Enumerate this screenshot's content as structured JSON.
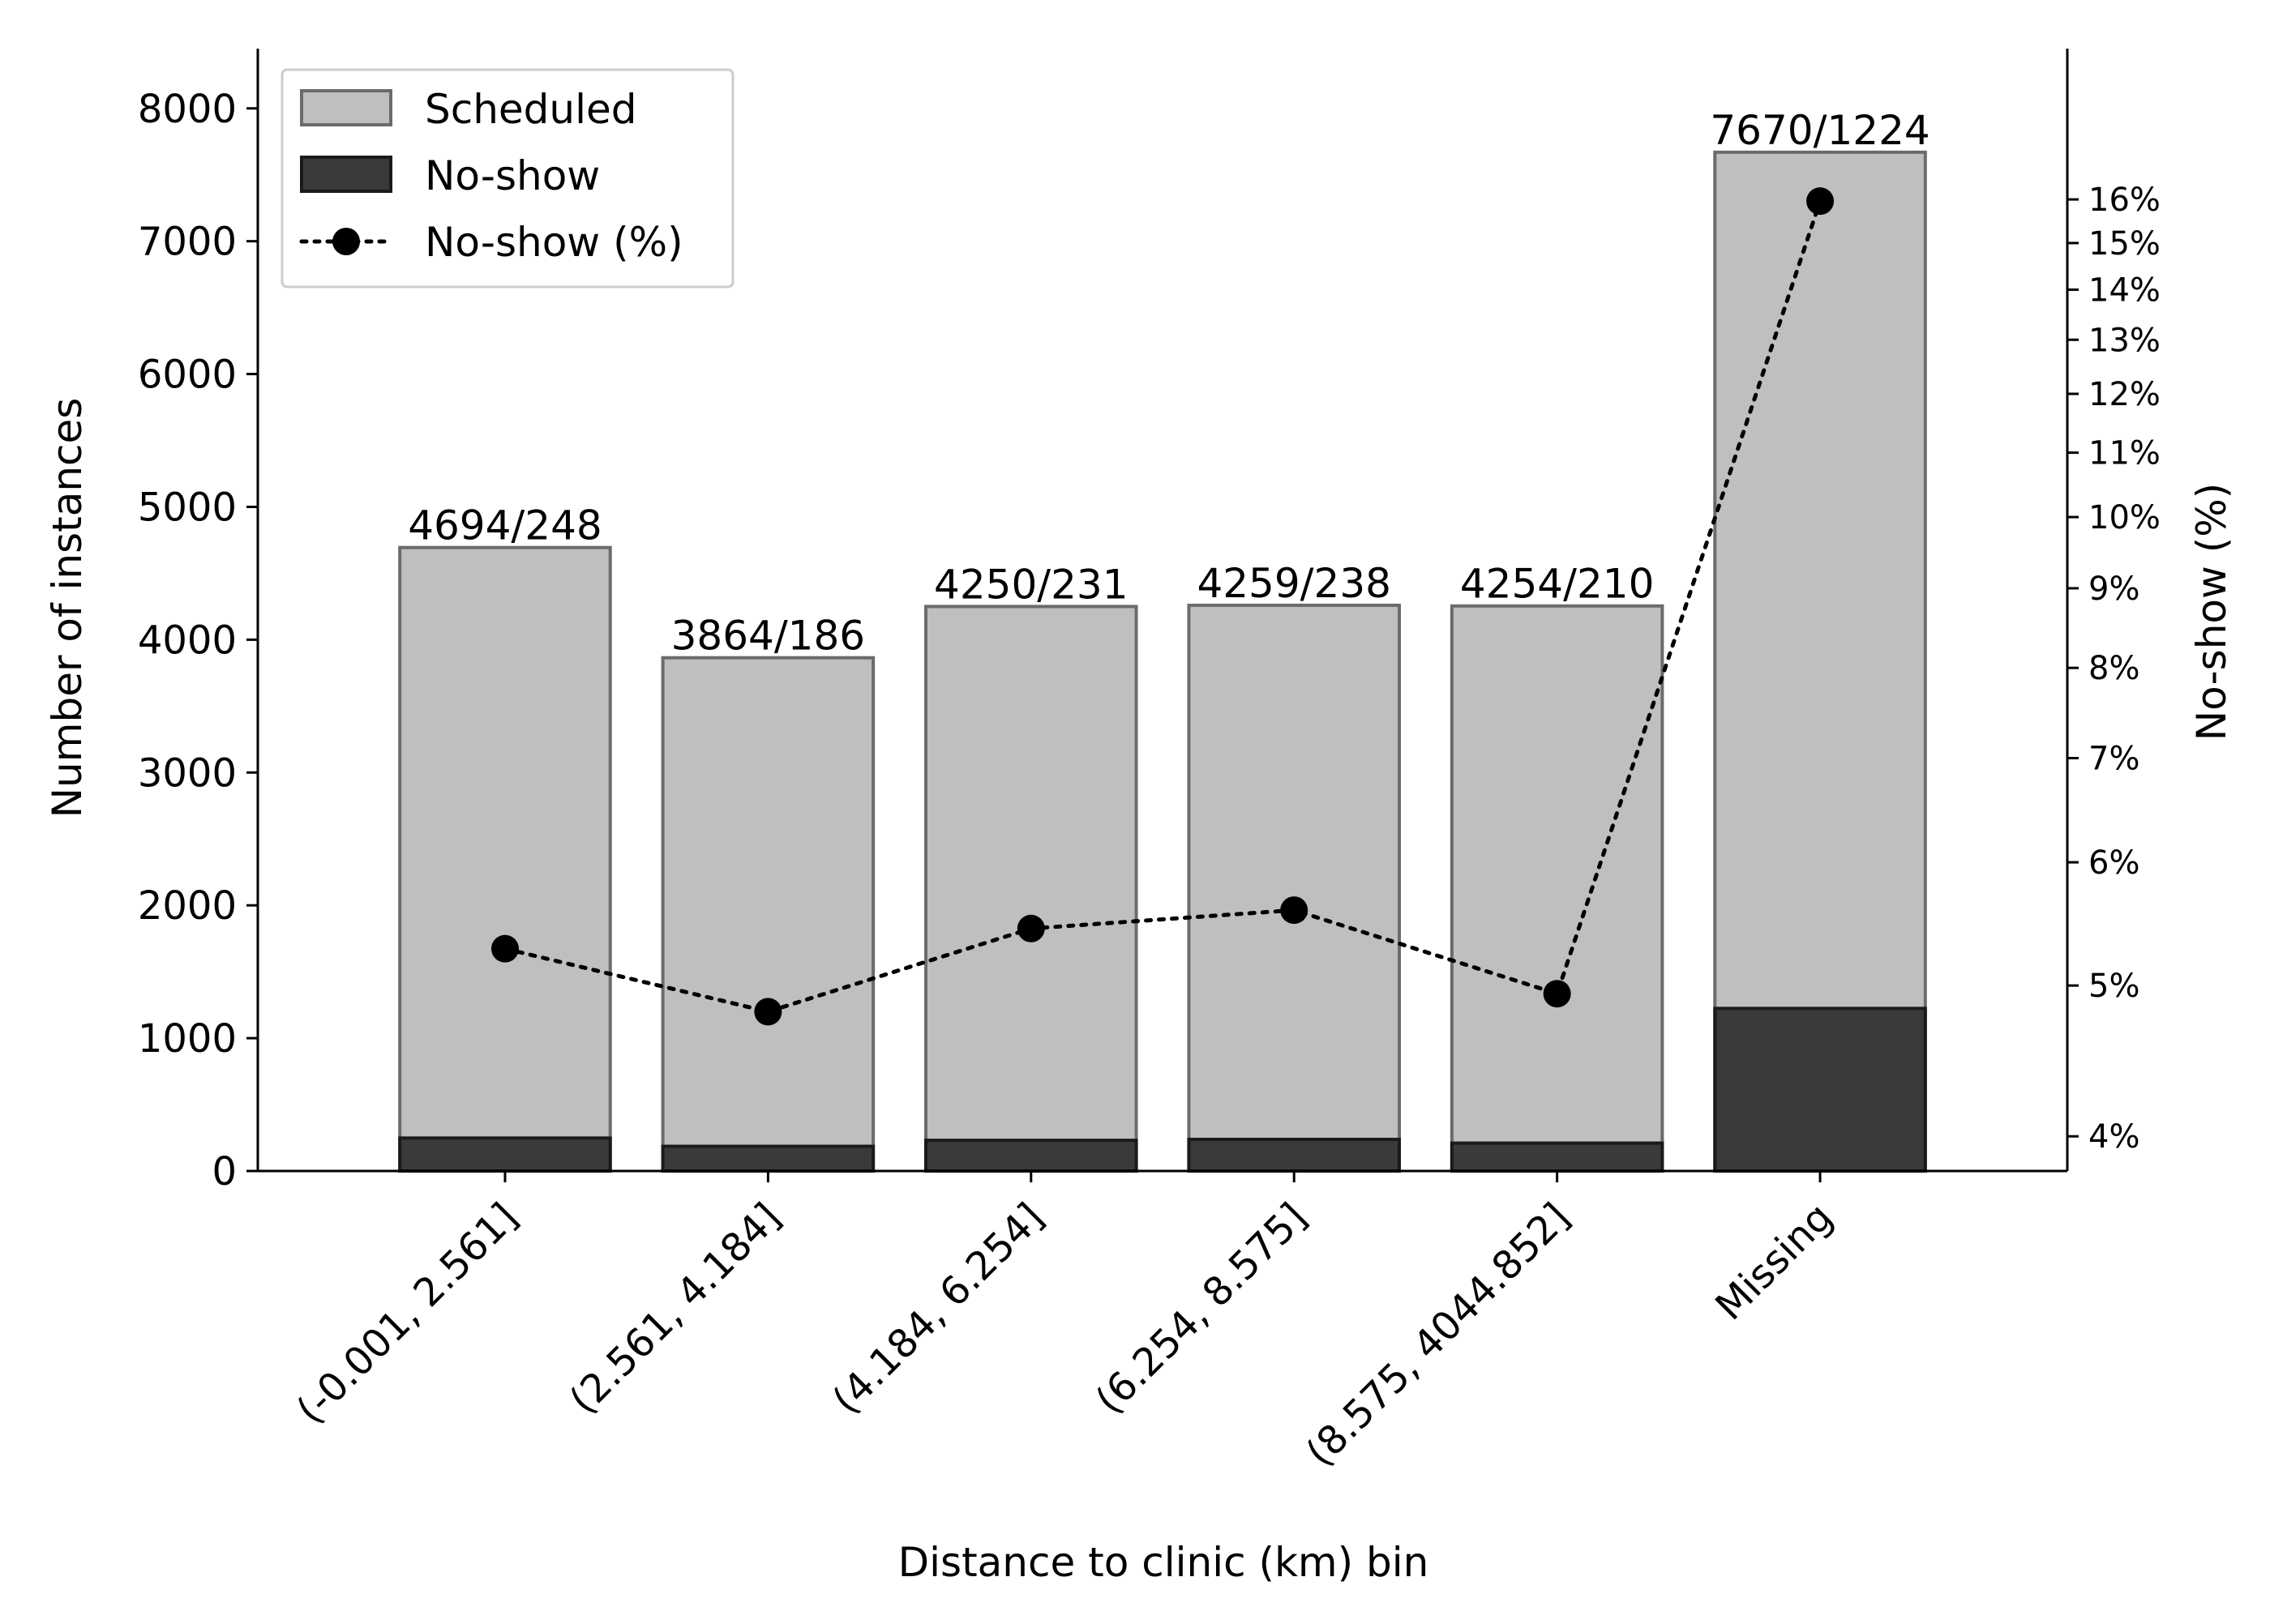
{
  "chart_data": {
    "type": "bar",
    "xlabel": "Distance to clinic (km) bin",
    "ylabel_left": "Number of instances",
    "ylabel_right": "No-show (%)",
    "categories": [
      "(-0.001, 2.561]",
      "(2.561, 4.184]",
      "(4.184, 6.254]",
      "(6.254, 8.575]",
      "(8.575, 4044.852]",
      "Missing"
    ],
    "series": [
      {
        "name": "Scheduled",
        "type": "bar",
        "color": "#bfbfbf",
        "values": [
          4694,
          3864,
          4250,
          4259,
          4254,
          7670
        ]
      },
      {
        "name": "No-show",
        "type": "bar",
        "color": "#3a3a3a",
        "values": [
          248,
          186,
          231,
          238,
          210,
          1224
        ]
      },
      {
        "name": "No-show (%)",
        "type": "line",
        "axis": "right",
        "color": "#000000",
        "values": [
          5.28,
          4.81,
          5.44,
          5.59,
          4.94,
          15.96
        ]
      }
    ],
    "bar_labels": [
      "4694/248",
      "3864/186",
      "4250/231",
      "4259/238",
      "4254/210",
      "7670/1224"
    ],
    "ylim_left": [
      0,
      8450
    ],
    "yticks_left": [
      "0",
      "1000",
      "2000",
      "3000",
      "4000",
      "5000",
      "6000",
      "7000",
      "8000"
    ],
    "yticks_left_values": [
      0,
      1000,
      2000,
      3000,
      4000,
      5000,
      6000,
      7000,
      8000
    ],
    "ylim_right": [
      3.8,
      20
    ],
    "yscale_right": "log",
    "yticks_right": [
      "4%",
      "5%",
      "6%",
      "7%",
      "8%",
      "9%",
      "10%",
      "11%",
      "12%",
      "13%",
      "14%",
      "15%",
      "16%"
    ],
    "yticks_right_values": [
      4,
      5,
      6,
      7,
      8,
      9,
      10,
      11,
      12,
      13,
      14,
      15,
      16
    ],
    "legend": {
      "position": "top-left",
      "entries": [
        "Scheduled",
        "No-show",
        "No-show (%)"
      ]
    },
    "grid": false
  }
}
